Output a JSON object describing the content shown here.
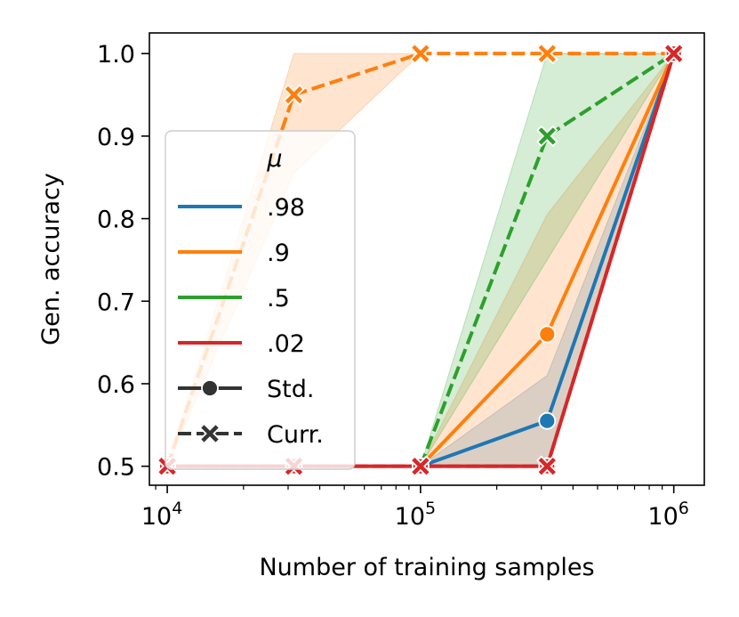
{
  "chart_data": {
    "type": "line",
    "title": "",
    "xlabel": "Number of training samples",
    "ylabel": "Gen. accuracy",
    "xscale": "log",
    "xlim": [
      8500,
      1320000
    ],
    "ylim": [
      0.477,
      1.025
    ],
    "x_ticks": [
      {
        "value": 10000,
        "base": "10",
        "exp": "4"
      },
      {
        "value": 100000,
        "base": "10",
        "exp": "5"
      },
      {
        "value": 1000000,
        "base": "10",
        "exp": "6"
      }
    ],
    "y_ticks": [
      {
        "value": 0.5,
        "label": "0.5"
      },
      {
        "value": 0.6,
        "label": "0.6"
      },
      {
        "value": 0.7,
        "label": "0.7"
      },
      {
        "value": 0.8,
        "label": "0.8"
      },
      {
        "value": 0.9,
        "label": "0.9"
      },
      {
        "value": 1.0,
        "label": "1.0"
      }
    ],
    "grid": false,
    "legend": {
      "placement": "center-left",
      "title": "μ",
      "hue_entries": [
        {
          "label": ".98",
          "color": "#1f77b4"
        },
        {
          "label": ".9",
          "color": "#ff7f0e"
        },
        {
          "label": ".5",
          "color": "#2ca02c"
        },
        {
          "label": ".02",
          "color": "#d62728"
        }
      ],
      "style_entries": [
        {
          "label": "Std.",
          "marker": "circle",
          "dash": "solid"
        },
        {
          "label": "Curr.",
          "marker": "x",
          "dash": "dashed"
        }
      ]
    },
    "series": [
      {
        "mu": ".98",
        "style": "Std.",
        "color": "#1f77b4",
        "marker": "circle",
        "dash": "solid",
        "x": [
          100000,
          316228,
          1000000
        ],
        "y": [
          0.5,
          0.555,
          1.0
        ],
        "band_low": [
          0.5,
          0.5,
          1.0
        ],
        "band_high": [
          0.5,
          0.61,
          1.0
        ]
      },
      {
        "mu": ".9",
        "style": "Std.",
        "color": "#ff7f0e",
        "marker": "circle",
        "dash": "solid",
        "x": [
          100000,
          316228,
          1000000
        ],
        "y": [
          0.5,
          0.66,
          1.0
        ],
        "band_low": [
          0.5,
          0.5,
          1.0
        ],
        "band_high": [
          0.5,
          0.805,
          1.0
        ]
      },
      {
        "mu": ".5",
        "style": "Curr.",
        "color": "#2ca02c",
        "marker": "x",
        "dash": "dashed",
        "x": [
          100000,
          316228,
          1000000
        ],
        "y": [
          0.5,
          0.9,
          1.0
        ],
        "band_low": [
          0.5,
          0.75,
          1.0
        ],
        "band_high": [
          0.5,
          1.0,
          1.0
        ]
      },
      {
        "mu": ".9",
        "style": "Curr.",
        "color": "#ff7f0e",
        "marker": "x",
        "dash": "dashed",
        "x": [
          10000,
          31623,
          100000,
          316228,
          1000000
        ],
        "y": [
          0.5,
          0.95,
          1.0,
          1.0,
          1.0
        ],
        "band_low": [
          0.5,
          0.855,
          1.0,
          1.0,
          1.0
        ],
        "band_high": [
          0.5,
          1.0,
          1.0,
          1.0,
          1.0
        ]
      },
      {
        "mu": ".02",
        "style": "Std.",
        "color": "#d62728",
        "marker": "circle",
        "dash": "solid",
        "x": [
          10000,
          31623,
          100000,
          316228,
          1000000
        ],
        "y": [
          0.5,
          0.5,
          0.5,
          0.5,
          1.0
        ],
        "band_low": [
          0.5,
          0.5,
          0.5,
          0.5,
          1.0
        ],
        "band_high": [
          0.5,
          0.5,
          0.5,
          0.5,
          1.0
        ]
      },
      {
        "mu": ".02",
        "style": "Curr.",
        "color": "#d62728",
        "marker": "x",
        "dash": "dashed",
        "x": [
          10000,
          31623,
          100000,
          316228,
          1000000
        ],
        "y": [
          0.5,
          0.5,
          0.5,
          0.5,
          1.0
        ],
        "band_low": [
          0.5,
          0.5,
          0.5,
          0.5,
          1.0
        ],
        "band_high": [
          0.5,
          0.5,
          0.5,
          0.5,
          1.0
        ]
      }
    ]
  }
}
